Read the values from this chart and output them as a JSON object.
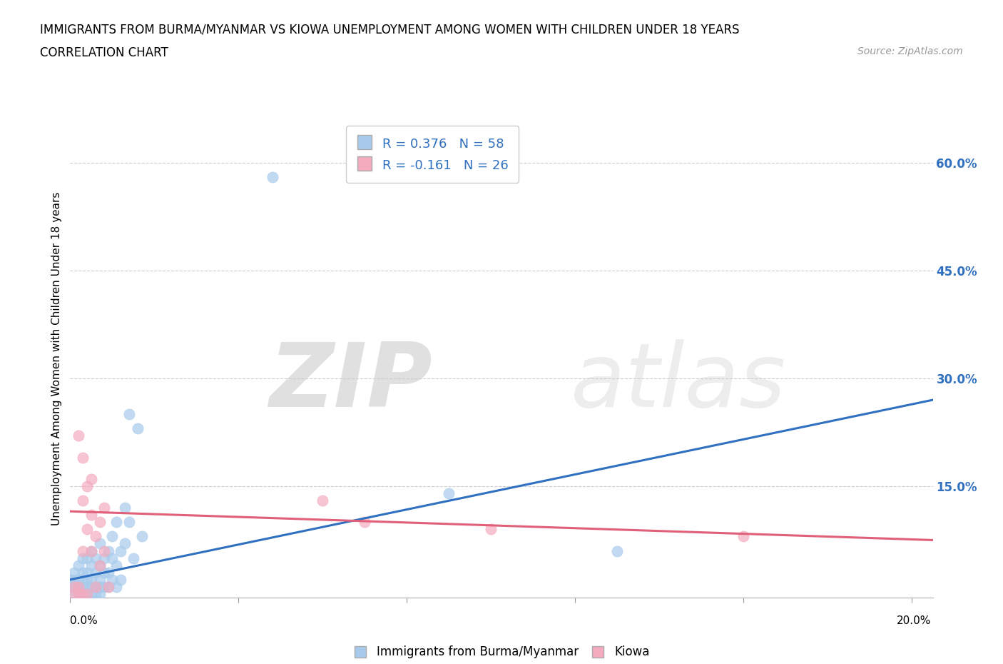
{
  "title": "IMMIGRANTS FROM BURMA/MYANMAR VS KIOWA UNEMPLOYMENT AMONG WOMEN WITH CHILDREN UNDER 18 YEARS",
  "subtitle": "CORRELATION CHART",
  "source": "Source: ZipAtlas.com",
  "ylabel": "Unemployment Among Women with Children Under 18 years",
  "xlim": [
    0.0,
    0.205
  ],
  "ylim": [
    -0.005,
    0.66
  ],
  "yticks": [
    0.0,
    0.15,
    0.3,
    0.45,
    0.6
  ],
  "ytick_labels": [
    "",
    "15.0%",
    "30.0%",
    "45.0%",
    "60.0%"
  ],
  "xticks": [
    0.0,
    0.04,
    0.08,
    0.12,
    0.16,
    0.2
  ],
  "blue_R": 0.376,
  "blue_N": 58,
  "pink_R": -0.161,
  "pink_N": 26,
  "blue_color": "#A8CBEC",
  "pink_color": "#F4ABBE",
  "blue_line_color": "#3070C0",
  "pink_line_color": "#E0607A",
  "watermark_zip": "ZIP",
  "watermark_atlas": "atlas",
  "blue_scatter": [
    [
      0.0,
      0.01
    ],
    [
      0.0,
      0.02
    ],
    [
      0.001,
      0.01
    ],
    [
      0.001,
      0.02
    ],
    [
      0.001,
      0.03
    ],
    [
      0.001,
      0.0
    ],
    [
      0.002,
      0.0
    ],
    [
      0.002,
      0.01
    ],
    [
      0.002,
      0.02
    ],
    [
      0.002,
      0.04
    ],
    [
      0.003,
      0.0
    ],
    [
      0.003,
      0.01
    ],
    [
      0.003,
      0.02
    ],
    [
      0.003,
      0.03
    ],
    [
      0.003,
      0.05
    ],
    [
      0.004,
      0.0
    ],
    [
      0.004,
      0.01
    ],
    [
      0.004,
      0.02
    ],
    [
      0.004,
      0.03
    ],
    [
      0.004,
      0.05
    ],
    [
      0.005,
      0.0
    ],
    [
      0.005,
      0.01
    ],
    [
      0.005,
      0.02
    ],
    [
      0.005,
      0.04
    ],
    [
      0.005,
      0.06
    ],
    [
      0.006,
      0.0
    ],
    [
      0.006,
      0.01
    ],
    [
      0.006,
      0.03
    ],
    [
      0.006,
      0.05
    ],
    [
      0.007,
      0.0
    ],
    [
      0.007,
      0.01
    ],
    [
      0.007,
      0.02
    ],
    [
      0.007,
      0.04
    ],
    [
      0.007,
      0.07
    ],
    [
      0.008,
      0.01
    ],
    [
      0.008,
      0.03
    ],
    [
      0.008,
      0.05
    ],
    [
      0.009,
      0.01
    ],
    [
      0.009,
      0.03
    ],
    [
      0.009,
      0.06
    ],
    [
      0.01,
      0.02
    ],
    [
      0.01,
      0.05
    ],
    [
      0.01,
      0.08
    ],
    [
      0.011,
      0.01
    ],
    [
      0.011,
      0.04
    ],
    [
      0.011,
      0.1
    ],
    [
      0.012,
      0.02
    ],
    [
      0.012,
      0.06
    ],
    [
      0.013,
      0.07
    ],
    [
      0.013,
      0.12
    ],
    [
      0.014,
      0.1
    ],
    [
      0.014,
      0.25
    ],
    [
      0.015,
      0.05
    ],
    [
      0.016,
      0.23
    ],
    [
      0.017,
      0.08
    ],
    [
      0.048,
      0.58
    ],
    [
      0.09,
      0.14
    ],
    [
      0.13,
      0.06
    ]
  ],
  "pink_scatter": [
    [
      0.001,
      0.0
    ],
    [
      0.001,
      0.01
    ],
    [
      0.002,
      0.0
    ],
    [
      0.002,
      0.01
    ],
    [
      0.002,
      0.22
    ],
    [
      0.003,
      0.0
    ],
    [
      0.003,
      0.06
    ],
    [
      0.003,
      0.13
    ],
    [
      0.003,
      0.19
    ],
    [
      0.004,
      0.0
    ],
    [
      0.004,
      0.09
    ],
    [
      0.004,
      0.15
    ],
    [
      0.005,
      0.06
    ],
    [
      0.005,
      0.11
    ],
    [
      0.005,
      0.16
    ],
    [
      0.006,
      0.01
    ],
    [
      0.006,
      0.08
    ],
    [
      0.007,
      0.04
    ],
    [
      0.007,
      0.1
    ],
    [
      0.008,
      0.06
    ],
    [
      0.008,
      0.12
    ],
    [
      0.009,
      0.01
    ],
    [
      0.06,
      0.13
    ],
    [
      0.07,
      0.1
    ],
    [
      0.1,
      0.09
    ],
    [
      0.16,
      0.08
    ]
  ],
  "blue_line_x": [
    0.0,
    0.205
  ],
  "blue_line_y": [
    0.02,
    0.27
  ],
  "pink_line_x": [
    0.0,
    0.205
  ],
  "pink_line_y": [
    0.115,
    0.075
  ]
}
